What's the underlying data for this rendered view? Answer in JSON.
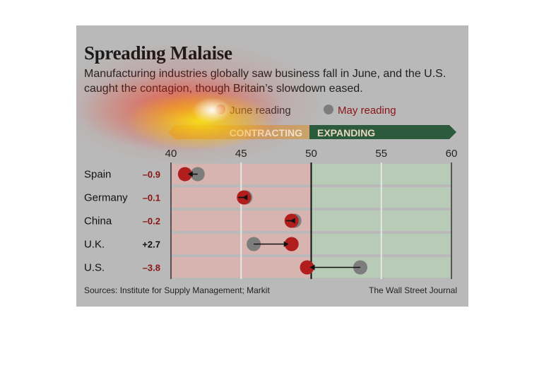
{
  "header": {
    "title": "Spreading Malaise",
    "subtitle": "Manufacturing industries globally saw business fall in June, and the U.S. caught the contagion, though Britain’s slowdown eased."
  },
  "legend": {
    "june_label": "June reading",
    "may_label": "May reading"
  },
  "zones": {
    "contracting": "CONTRACTING",
    "expanding": "EXPANDING"
  },
  "footer": {
    "sources": "Sources: Institute for Supply Management; Markit",
    "credit": "The Wall Street Journal"
  },
  "colors": {
    "june": "#b01e1e",
    "may": "#7d7d7d",
    "contracting": "#c9a36b",
    "expanding": "#2c5a3c",
    "contract_band": "#d7b4b0",
    "expand_band": "#b8cbb6"
  },
  "chart_data": {
    "type": "dot-arrow",
    "xlim": [
      40,
      60
    ],
    "ticks": [
      "40",
      "45",
      "50",
      "55",
      "60"
    ],
    "threshold": 50,
    "countries": [
      {
        "name": "Spain",
        "change": "–0.9",
        "may": 41.9,
        "june": 41.0
      },
      {
        "name": "Germany",
        "change": "–0.1",
        "may": 45.3,
        "june": 45.2
      },
      {
        "name": "China",
        "change": "–0.2",
        "may": 48.8,
        "june": 48.6
      },
      {
        "name": "U.K.",
        "change": "+2.7",
        "may": 45.9,
        "june": 48.6
      },
      {
        "name": "U.S.",
        "change": "–3.8",
        "may": 53.5,
        "june": 49.7
      }
    ]
  }
}
